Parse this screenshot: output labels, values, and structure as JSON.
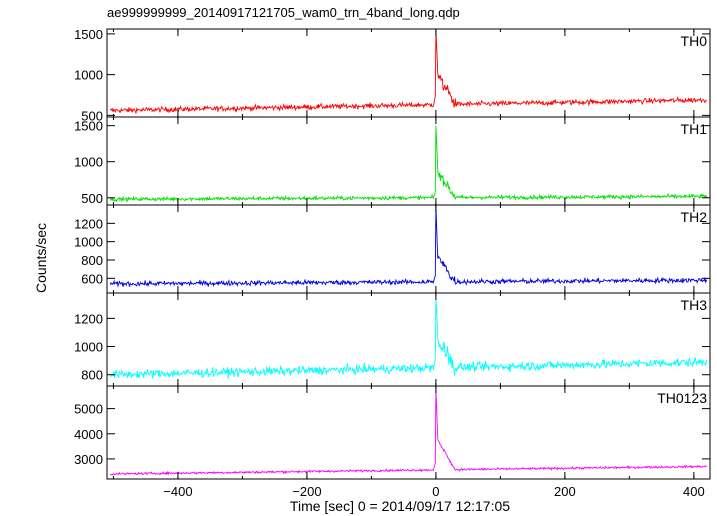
{
  "title": "ae999999999_20140917121705_wam0_trn_4band_long.qdp",
  "ylabel": "Counts/sec",
  "xlabel": "Time [sec] 0 = 2014/09/17 12:17:05",
  "chart_data": {
    "type": "line",
    "x_range": [
      -510,
      425
    ],
    "x_ticks": [
      -400,
      -200,
      0,
      200,
      400
    ],
    "x_tick_labels": [
      "−400",
      "−200",
      "0",
      "200",
      "400"
    ],
    "panels": [
      {
        "label": "TH0",
        "color": "#ff0000",
        "ylim": [
          480,
          1560
        ],
        "yticks": [
          500,
          1000,
          1500
        ],
        "baseline_start": 560,
        "baseline_end": 690,
        "noise": 30,
        "burst_peak": 1530,
        "burst_plateau": 1000,
        "burst_width": 30,
        "x": [
          -500,
          -400,
          -300,
          -200,
          -100,
          -10,
          0,
          2,
          5,
          15,
          30,
          50,
          100,
          200,
          300,
          400,
          420
        ],
        "y": [
          575,
          600,
          615,
          630,
          645,
          660,
          700,
          1530,
          1050,
          950,
          700,
          650,
          660,
          670,
          680,
          690,
          690
        ]
      },
      {
        "label": "TH1",
        "color": "#00e000",
        "ylim": [
          400,
          1620
        ],
        "yticks": [
          500,
          1000,
          1500
        ],
        "baseline_start": 480,
        "baseline_end": 520,
        "noise": 25,
        "burst_peak": 1500,
        "burst_plateau": 850,
        "burst_width": 30,
        "x": [
          -500,
          -400,
          -300,
          -200,
          -100,
          -10,
          0,
          2,
          5,
          15,
          30,
          50,
          100,
          200,
          300,
          400,
          420
        ],
        "y": [
          470,
          480,
          490,
          495,
          500,
          510,
          540,
          1500,
          850,
          800,
          560,
          520,
          510,
          515,
          515,
          520,
          520
        ]
      },
      {
        "label": "TH2",
        "color": "#0000e0",
        "ylim": [
          440,
          1400
        ],
        "yticks": [
          600,
          800,
          1000,
          1200
        ],
        "baseline_start": 540,
        "baseline_end": 580,
        "noise": 25,
        "burst_peak": 1380,
        "burst_plateau": 820,
        "burst_width": 30,
        "x": [
          -500,
          -400,
          -300,
          -200,
          -100,
          -10,
          0,
          2,
          5,
          15,
          30,
          50,
          100,
          200,
          300,
          400,
          420
        ],
        "y": [
          540,
          545,
          550,
          555,
          560,
          575,
          620,
          1380,
          850,
          770,
          620,
          590,
          590,
          585,
          580,
          580,
          580
        ]
      },
      {
        "label": "TH3",
        "color": "#00ffff",
        "ylim": [
          720,
          1380
        ],
        "yticks": [
          800,
          1000,
          1200
        ],
        "baseline_start": 800,
        "baseline_end": 890,
        "noise": 30,
        "burst_peak": 1360,
        "burst_plateau": 1050,
        "burst_width": 30,
        "x": [
          -500,
          -400,
          -300,
          -200,
          -100,
          -10,
          0,
          2,
          5,
          15,
          30,
          50,
          100,
          200,
          300,
          400,
          420
        ],
        "y": [
          800,
          815,
          830,
          845,
          860,
          880,
          930,
          1360,
          1060,
          980,
          920,
          900,
          900,
          895,
          890,
          890,
          890
        ]
      },
      {
        "label": "TH0123",
        "color": "#ff00ff",
        "ylim": [
          2200,
          5900
        ],
        "yticks": [
          3000,
          4000,
          5000
        ],
        "baseline_start": 2400,
        "baseline_end": 2700,
        "noise": 40,
        "burst_peak": 5750,
        "burst_plateau": 3750,
        "burst_width": 30,
        "x": [
          -500,
          -400,
          -300,
          -200,
          -100,
          -10,
          0,
          2,
          5,
          15,
          30,
          50,
          100,
          200,
          300,
          400,
          420
        ],
        "y": [
          2420,
          2480,
          2540,
          2600,
          2650,
          2700,
          2800,
          5750,
          3800,
          3500,
          2800,
          2720,
          2720,
          2720,
          2710,
          2700,
          2700
        ]
      }
    ]
  }
}
